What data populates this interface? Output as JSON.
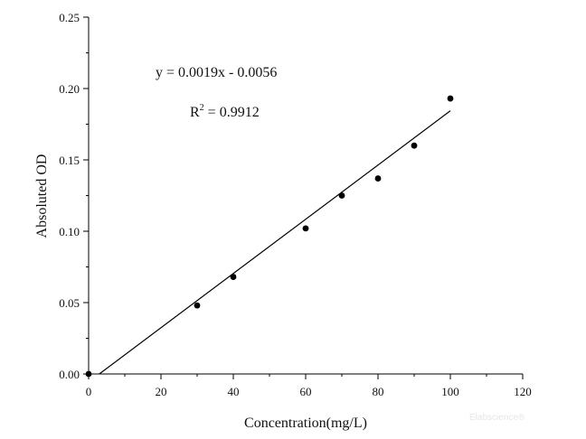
{
  "chart_data": {
    "type": "scatter",
    "xlabel": "Concentration(mg/L)",
    "ylabel": "Absoluted OD",
    "xlim": [
      0,
      120
    ],
    "ylim": [
      0,
      0.25
    ],
    "xticks": [
      "0",
      "20",
      "40",
      "60",
      "80",
      "100",
      "120"
    ],
    "yticks": [
      "0.00",
      "0.05",
      "0.10",
      "0.15",
      "0.20",
      "0.25"
    ],
    "grid": false,
    "points": [
      {
        "x": 0,
        "y": 0.0
      },
      {
        "x": 30,
        "y": 0.048
      },
      {
        "x": 40,
        "y": 0.068
      },
      {
        "x": 60,
        "y": 0.102
      },
      {
        "x": 70,
        "y": 0.125
      },
      {
        "x": 80,
        "y": 0.137
      },
      {
        "x": 90,
        "y": 0.16
      },
      {
        "x": 100,
        "y": 0.193
      }
    ],
    "fit": {
      "slope": 0.0019,
      "intercept": -0.0056,
      "x_range": [
        0,
        100
      ]
    },
    "annotations": {
      "equation": "y = 0.0019x - 0.0056",
      "r2_prefix": "R",
      "r2_sup": "2",
      "r2_value": " = 0.9912"
    },
    "watermark": "Elabscience®"
  }
}
